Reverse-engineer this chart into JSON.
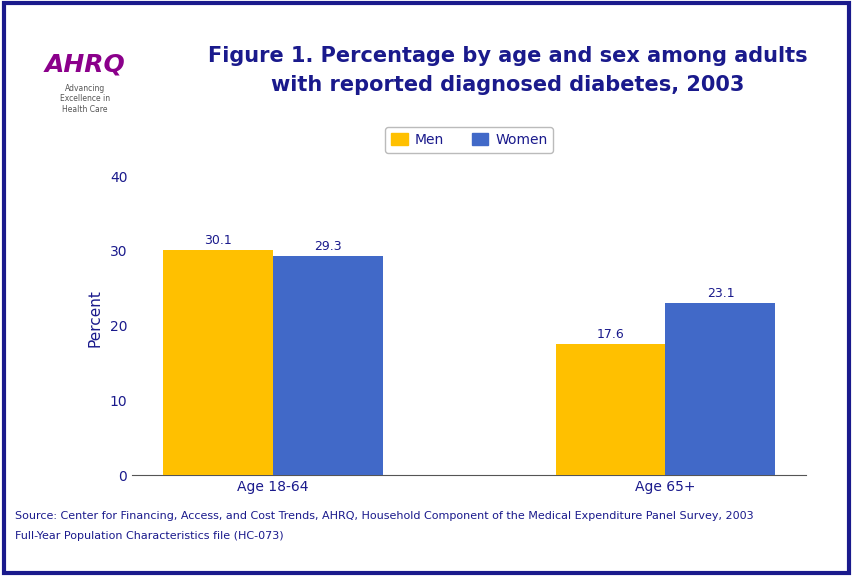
{
  "title_line1": "Figure 1. Percentage by age and sex among adults",
  "title_line2": "with reported diagnosed diabetes, 2003",
  "title_color": "#1a1a8c",
  "title_fontsize": 15,
  "categories": [
    "Age 18-64",
    "Age 65+"
  ],
  "men_values": [
    30.1,
    17.6
  ],
  "women_values": [
    29.3,
    23.1
  ],
  "men_color": "#FFC000",
  "women_color": "#4169C8",
  "ylabel": "Percent",
  "ylabel_color": "#1a1a8c",
  "ylim": [
    0,
    42
  ],
  "yticks": [
    0,
    10,
    20,
    30,
    40
  ],
  "bar_width": 0.28,
  "legend_labels": [
    "Men",
    "Women"
  ],
  "tick_label_fontsize": 10,
  "value_label_color": "#1a1a8c",
  "value_label_fontsize": 9,
  "source_text_line1": "Source: Center for Financing, Access, and Cost Trends, AHRQ, Household Component of the Medical Expenditure Panel Survey, 2003",
  "source_text_line2": "Full-Year Population Characteristics file (HC-073)",
  "source_fontsize": 8,
  "source_color": "#1a1a8c",
  "background_color": "#ffffff",
  "plot_bg_color": "#ffffff",
  "outer_border_color": "#1a1a8c",
  "divider_color": "#1a1a8c",
  "logo_bg_color": "#2e86ab",
  "header_bg_color": "#ffffff"
}
